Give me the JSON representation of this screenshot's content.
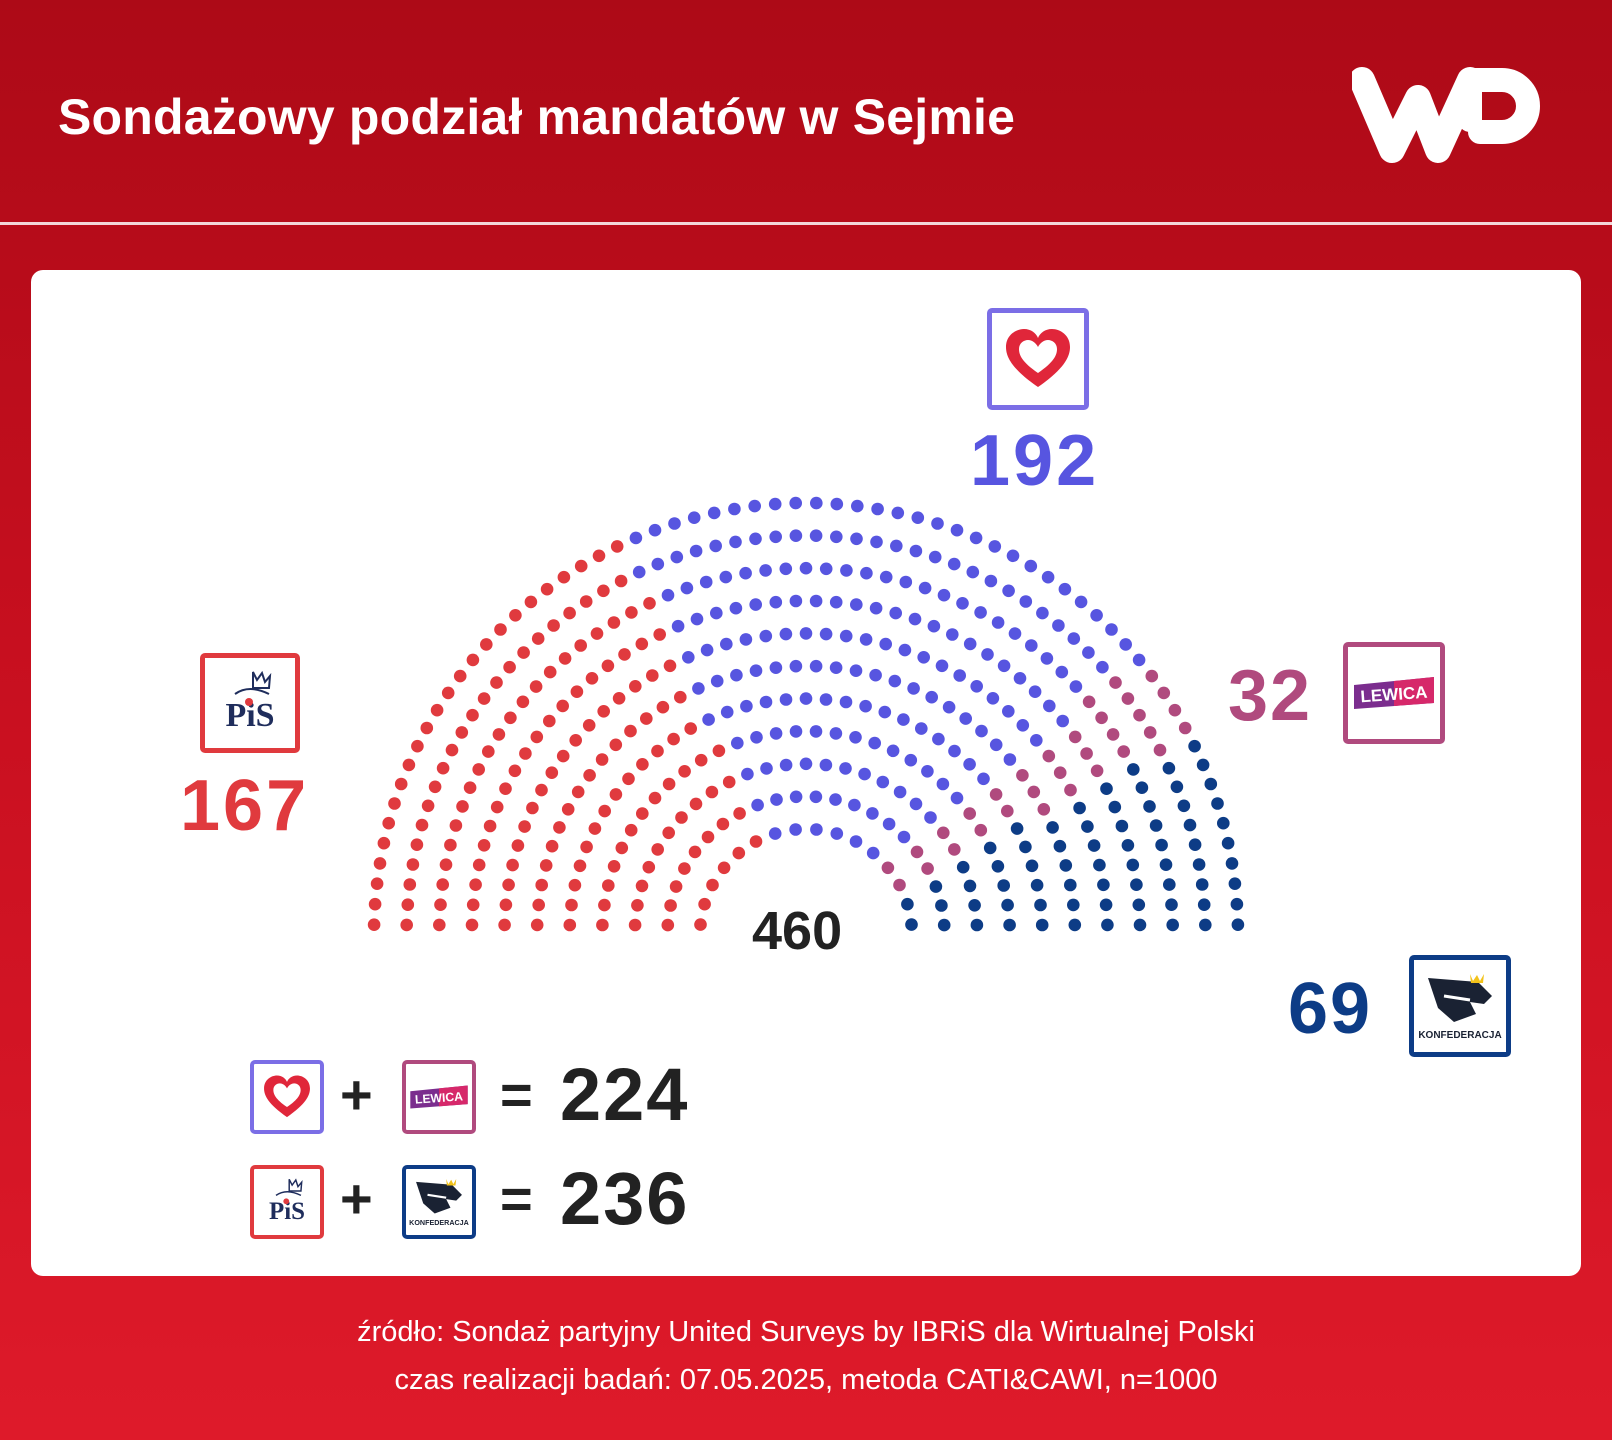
{
  "title": "Sondażowy podział mandatów w Sejmie",
  "brand": "WP",
  "chart_data": {
    "type": "parliament",
    "total_seats": 460,
    "total_label": "460",
    "series": [
      {
        "name": "PiS",
        "short": "PiS",
        "value": 167,
        "color": "#e03a3e"
      },
      {
        "name": "KO",
        "short": "heart",
        "value": 192,
        "color": "#5755e0"
      },
      {
        "name": "Lewica",
        "short": "LEWICA",
        "value": 32,
        "color": "#b04a7e"
      },
      {
        "name": "Konfederacja",
        "short": "KONFEDERACJA",
        "value": 69,
        "color": "#0d3c86"
      }
    ]
  },
  "labels": {
    "pis_count": "167",
    "ko_count": "192",
    "lewica_count": "32",
    "konf_count": "69",
    "lewica_logo_text": "LEWICA",
    "konf_logo_text": "KONFEDERACJA",
    "pis_logo_text": "PiS"
  },
  "sums": [
    {
      "plus": "+",
      "equals": "=",
      "total": "224"
    },
    {
      "plus": "+",
      "equals": "=",
      "total": "236"
    }
  ],
  "footer": {
    "line1": "źródło: Sondaż partyjny United Surveys by IBRiS dla Wirtualnej Polski",
    "line2": "czas realizacji badań: 07.05.2025, metoda CATI&CAWI, n=1000"
  },
  "colors": {
    "background_top": "#ad0a17",
    "background_bottom": "#de1a2a",
    "card": "#ffffff",
    "pis": "#e03a3e",
    "ko": "#5755e0",
    "lewica": "#b04a7e",
    "konfederacja": "#0d3c86",
    "text_dark": "#222222"
  }
}
